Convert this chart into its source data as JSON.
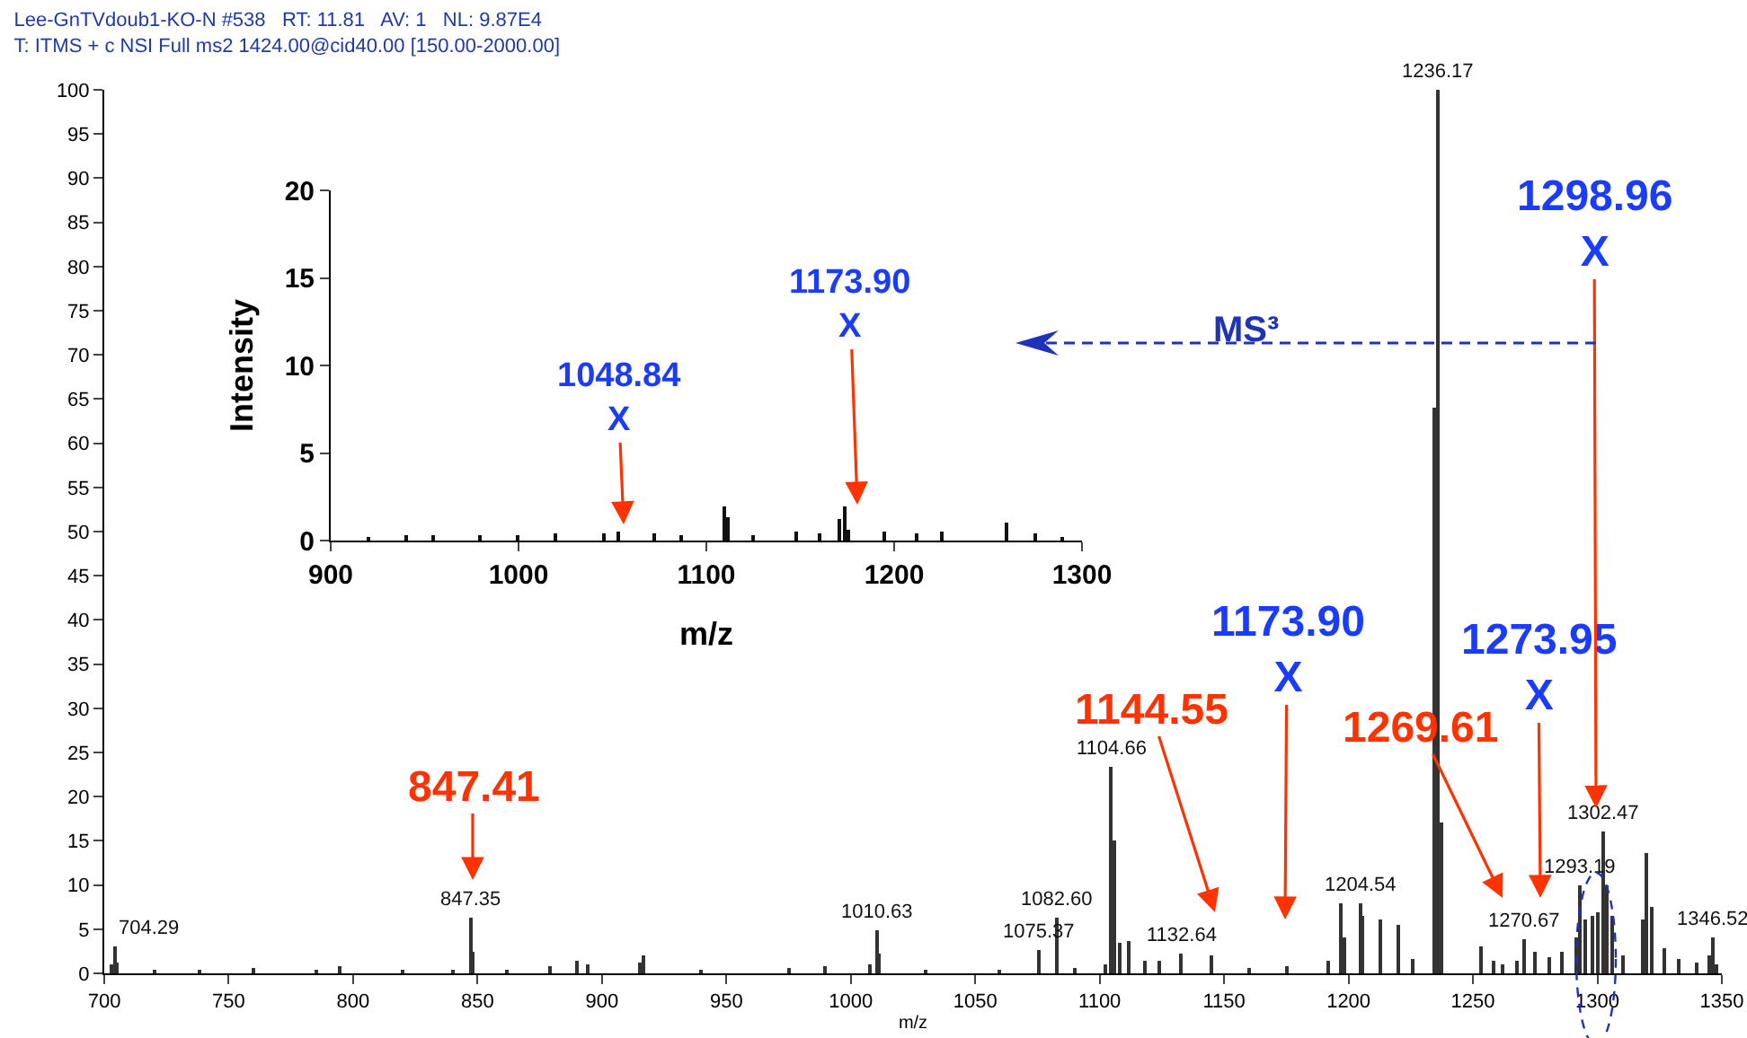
{
  "chart_data": [
    {
      "type": "bar",
      "title": "Lee-GnTVdoub1-KO-N #538   RT: 11.81   AV: 1   NL: 9.87E4",
      "subtitle": "T: ITMS + c NSI Full ms2 1424.00@cid40.00 [150.00-2000.00]",
      "xlabel": "m/z",
      "color": "#333333",
      "x": [
        702.6,
        704.29,
        705,
        720,
        738,
        760,
        785,
        795,
        820,
        840,
        847.35,
        848.3,
        862,
        879,
        890,
        894,
        915,
        917,
        940,
        975,
        990,
        1008,
        1010.63,
        1011.6,
        1030,
        1060,
        1075.37,
        1082.6,
        1090,
        1102,
        1104.66,
        1105.6,
        1108,
        1112,
        1118,
        1124,
        1132.64,
        1145,
        1160,
        1175,
        1192,
        1197,
        1198.5,
        1204.54,
        1205.5,
        1213,
        1220,
        1226,
        1234.3,
        1236.17,
        1237.3,
        1253,
        1258,
        1262,
        1268,
        1270.67,
        1275,
        1281,
        1286,
        1291.5,
        1293.19,
        1295,
        1298,
        1300,
        1302.47,
        1304,
        1306,
        1310,
        1318,
        1320,
        1322,
        1327,
        1333,
        1340,
        1344.8,
        1346.52,
        1348
      ],
      "values": [
        1,
        3,
        1.2,
        0.4,
        0.5,
        0.6,
        0.4,
        0.8,
        0.4,
        0.4,
        6.3,
        2.5,
        0.5,
        0.8,
        1.4,
        1,
        1.2,
        2,
        0.4,
        0.6,
        0.8,
        1,
        4.9,
        2.3,
        0.5,
        0.5,
        2.6,
        6.3,
        0.6,
        1,
        23.4,
        15,
        3.4,
        3.7,
        1.4,
        1.4,
        2.3,
        2,
        0.6,
        0.8,
        1.5,
        8,
        4,
        8,
        6.5,
        6,
        5.5,
        1.6,
        64,
        100,
        17,
        3,
        1.5,
        1,
        1.5,
        3.9,
        2.5,
        1.8,
        2.5,
        4,
        10,
        6,
        6.5,
        7,
        16,
        10,
        6.5,
        2,
        6,
        13.6,
        7.5,
        2.8,
        1.7,
        1.2,
        2,
        4,
        1
      ],
      "xlim": [
        700,
        1350
      ],
      "xticks": [
        700,
        750,
        800,
        850,
        900,
        950,
        1000,
        1050,
        1100,
        1150,
        1200,
        1250,
        1300,
        1350
      ],
      "ylim": [
        0,
        100
      ],
      "yticks": [
        0,
        5,
        10,
        15,
        20,
        25,
        30,
        35,
        40,
        45,
        50,
        55,
        60,
        65,
        70,
        75,
        80,
        85,
        90,
        95,
        100
      ],
      "grid": false,
      "annotations": [
        {
          "text": "704.29",
          "x": 704.29,
          "y": 3
        },
        {
          "text": "847.35",
          "x": 847.35,
          "y": 6.3
        },
        {
          "text": "1010.63",
          "x": 1010.63,
          "y": 4.9
        },
        {
          "text": "1075.37",
          "x": 1075.37,
          "y": 2.6
        },
        {
          "text": "1082.60",
          "x": 1082.6,
          "y": 6.3
        },
        {
          "text": "1104.66",
          "x": 1104.66,
          "y": 23.4
        },
        {
          "text": "1132.64",
          "x": 1132.64,
          "y": 2.3
        },
        {
          "text": "1204.54",
          "x": 1204.54,
          "y": 8
        },
        {
          "text": "1236.17",
          "x": 1236.17,
          "y": 100
        },
        {
          "text": "1270.67",
          "x": 1270.67,
          "y": 3.9
        },
        {
          "text": "1293.19",
          "x": 1293.19,
          "y": 10
        },
        {
          "text": "1302.47",
          "x": 1302.47,
          "y": 16
        },
        {
          "text": "1346.52",
          "x": 1346.52,
          "y": 4
        },
        "847.41",
        "1144.55",
        "1173.90\nX",
        "1269.61",
        "1273.95\nX",
        "1298.96\nX",
        "MS³"
      ]
    },
    {
      "type": "bar",
      "xlabel": "m/z",
      "ylabel": "Intensity",
      "color": "#111111",
      "x": [
        920,
        940,
        955,
        980,
        1000,
        1020,
        1046,
        1053,
        1072,
        1087,
        1110,
        1111.5,
        1125,
        1148,
        1160,
        1171,
        1174,
        1176,
        1195,
        1212,
        1225,
        1260,
        1275,
        1290
      ],
      "values": [
        0.2,
        0.3,
        0.3,
        0.3,
        0.3,
        0.4,
        0.4,
        0.5,
        0.4,
        0.3,
        2,
        1.3,
        0.3,
        0.5,
        0.4,
        1.2,
        2,
        0.6,
        0.5,
        0.4,
        0.5,
        1,
        0.4,
        0.2
      ],
      "xlim": [
        900,
        1300
      ],
      "xticks": [
        900,
        1000,
        1100,
        1200,
        1300
      ],
      "ylim": [
        0,
        20
      ],
      "yticks": [
        0,
        5,
        10,
        15,
        20
      ],
      "grid": false,
      "annotations": [
        "1048.84\nX",
        "1173.90\nX"
      ]
    }
  ]
}
